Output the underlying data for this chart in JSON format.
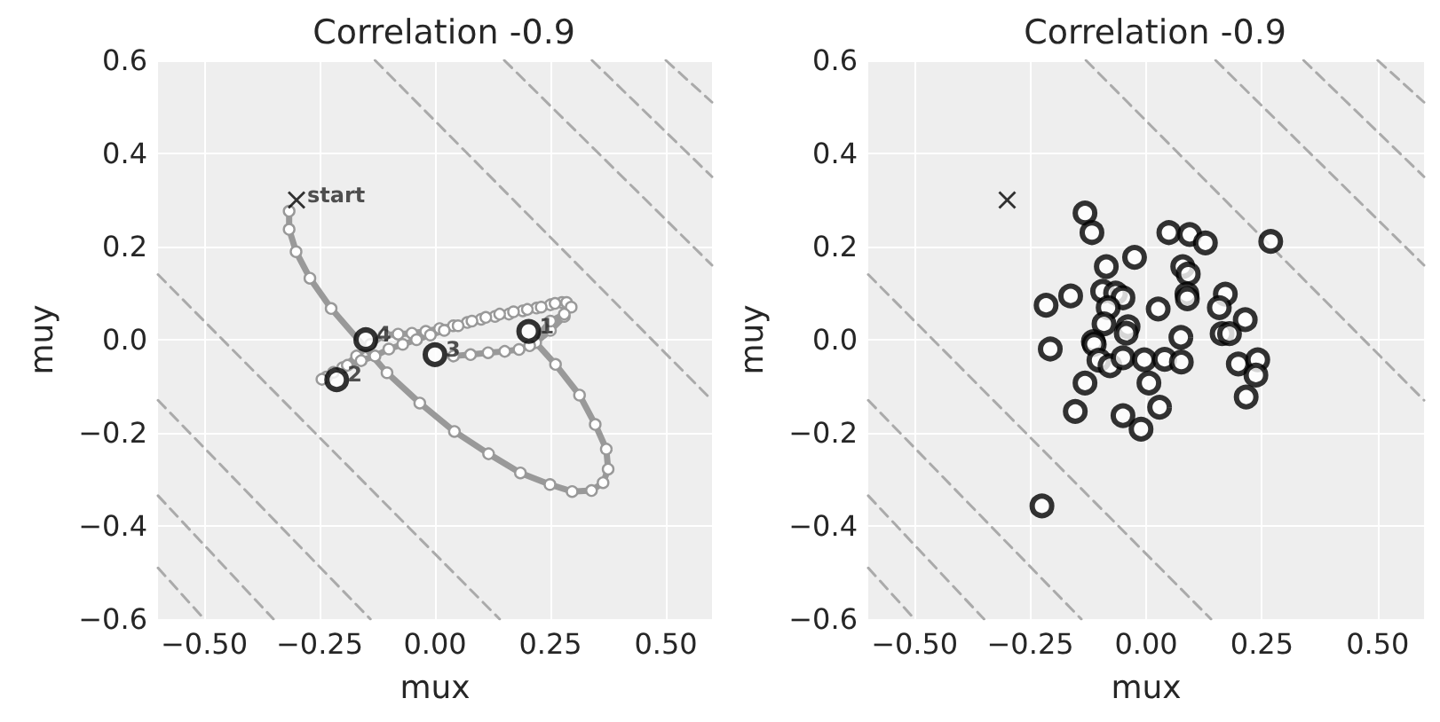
{
  "chart_data": [
    {
      "type": "scatter",
      "title": "Correlation -0.9",
      "xlabel": "mux",
      "ylabel": "muy",
      "xlim": [
        -0.6,
        0.6
      ],
      "ylim": [
        -0.6,
        0.6
      ],
      "xticks": [
        {
          "value": -0.5,
          "label": "−0.50"
        },
        {
          "value": -0.25,
          "label": "−0.25"
        },
        {
          "value": 0,
          "label": "0.00"
        },
        {
          "value": 0.25,
          "label": "0.25"
        },
        {
          "value": 0.5,
          "label": "0.50"
        }
      ],
      "yticks": [
        {
          "value": -0.6,
          "label": "−0.6"
        },
        {
          "value": -0.4,
          "label": "−0.4"
        },
        {
          "value": -0.2,
          "label": "−0.2"
        },
        {
          "value": 0,
          "label": "0.0"
        },
        {
          "value": 0.2,
          "label": "0.2"
        },
        {
          "value": 0.4,
          "label": "0.4"
        },
        {
          "value": 0.6,
          "label": "0.6"
        }
      ],
      "grid": true,
      "annotations": [
        {
          "text": "start",
          "x": -0.3,
          "y": 0.3
        },
        {
          "text": "1",
          "x": 0.203,
          "y": 0.018
        },
        {
          "text": "2",
          "x": -0.213,
          "y": -0.086
        },
        {
          "text": "3",
          "x": 0.0,
          "y": -0.032
        },
        {
          "text": "4",
          "x": -0.15,
          "y": 0.0
        }
      ],
      "series": [
        {
          "type": "line",
          "color": "#aaaaaa",
          "line_style": "dashed",
          "marker": "none",
          "x": [
            -0.6,
            0.14
          ],
          "values": [
            0.14,
            -0.6
          ]
        },
        {
          "type": "line",
          "color": "#aaaaaa",
          "line_style": "dashed",
          "marker": "none",
          "x": [
            -0.6,
            -0.14
          ],
          "values": [
            -0.13,
            -0.6
          ]
        },
        {
          "type": "line",
          "color": "#aaaaaa",
          "line_style": "dashed",
          "marker": "none",
          "x": [
            -0.6,
            -0.35
          ],
          "values": [
            -0.335,
            -0.6
          ]
        },
        {
          "type": "line",
          "color": "#aaaaaa",
          "line_style": "dashed",
          "marker": "none",
          "x": [
            -0.6,
            -0.5
          ],
          "values": [
            -0.49,
            -0.6
          ]
        },
        {
          "type": "line",
          "color": "#aaaaaa",
          "line_style": "dashed",
          "marker": "none",
          "x": [
            -0.13,
            0.6
          ],
          "values": [
            0.6,
            -0.13
          ]
        },
        {
          "type": "line",
          "color": "#aaaaaa",
          "line_style": "dashed",
          "marker": "none",
          "x": [
            0.15,
            0.6
          ],
          "values": [
            0.6,
            0.16
          ]
        },
        {
          "type": "line",
          "color": "#aaaaaa",
          "line_style": "dashed",
          "marker": "none",
          "x": [
            0.34,
            0.6
          ],
          "values": [
            0.6,
            0.35
          ]
        },
        {
          "type": "line",
          "color": "#aaaaaa",
          "line_style": "dashed",
          "marker": "none",
          "x": [
            0.5,
            0.6
          ],
          "values": [
            0.6,
            0.51
          ]
        },
        {
          "type": "line",
          "color": "#999999",
          "line_style": "solid",
          "marker": "circle",
          "x": [
            -0.316,
            -0.316,
            -0.301,
            -0.271,
            -0.225,
            -0.104,
            -0.033,
            0.042,
            0.116,
            0.185,
            0.249,
            0.297,
            0.339,
            0.364,
            0.375,
            0.371,
            0.347,
            0.313,
            0.261,
            0.218,
            0.25,
            0.28,
            0.29,
            0.275,
            0.25,
            0.22,
            0.19,
            0.16,
            0.13,
            0.1,
            0.07,
            0.04,
            0.01,
            -0.02,
            -0.05,
            -0.08,
            -0.11,
            -0.14,
            -0.17,
            -0.2,
            -0.235,
            -0.245,
            -0.22,
            -0.19,
            -0.16,
            -0.13,
            -0.1,
            -0.07,
            -0.04,
            -0.01,
            0.02,
            0.05,
            0.08,
            0.11,
            0.14,
            0.17,
            0.2,
            0.23,
            0.26,
            0.285,
            0.295,
            0.28,
            0.25,
            0.205,
            0.182,
            0.151,
            0.115,
            0.077,
            0.04
          ],
          "values": [
            0.276,
            0.237,
            0.189,
            0.132,
            0.067,
            -0.071,
            -0.136,
            -0.197,
            -0.245,
            -0.286,
            -0.311,
            -0.326,
            -0.324,
            -0.307,
            -0.278,
            -0.235,
            -0.182,
            -0.119,
            -0.053,
            -0.006,
            0.02,
            0.05,
            0.07,
            0.08,
            0.075,
            0.068,
            0.062,
            0.055,
            0.05,
            0.044,
            0.037,
            0.03,
            0.024,
            0.018,
            0.014,
            0.012,
            0.01,
            -0.01,
            -0.035,
            -0.06,
            -0.08,
            -0.085,
            -0.07,
            -0.055,
            -0.045,
            -0.035,
            -0.02,
            -0.01,
            0,
            0.01,
            0.02,
            0.03,
            0.04,
            0.048,
            0.055,
            0.06,
            0.065,
            0.07,
            0.078,
            0.08,
            0.07,
            0.055,
            0.04,
            -0.013,
            -0.021,
            -0.025,
            -0.028,
            -0.032,
            -0.035
          ]
        },
        {
          "type": "scatter",
          "color": "#000000",
          "marker": "cross",
          "x": [
            -0.3
          ],
          "values": [
            0.3
          ]
        },
        {
          "color": "#000000",
          "marker": "circle",
          "x": [
            0.203,
            -0.213,
            0.0,
            -0.15
          ],
          "values": [
            0.018,
            -0.086,
            -0.032,
            0.0
          ]
        }
      ]
    },
    {
      "type": "scatter",
      "title": "Correlation -0.9",
      "xlabel": "mux",
      "ylabel": "muy",
      "xlim": [
        -0.6,
        0.6
      ],
      "ylim": [
        -0.6,
        0.6
      ],
      "xticks": [
        {
          "value": -0.5,
          "label": "−0.50"
        },
        {
          "value": -0.25,
          "label": "−0.25"
        },
        {
          "value": 0,
          "label": "0.00"
        },
        {
          "value": 0.25,
          "label": "0.25"
        },
        {
          "value": 0.5,
          "label": "0.50"
        }
      ],
      "yticks": [
        {
          "value": -0.6,
          "label": "−0.6"
        },
        {
          "value": -0.4,
          "label": "−0.4"
        },
        {
          "value": -0.2,
          "label": "−0.2"
        },
        {
          "value": 0,
          "label": "0.0"
        },
        {
          "value": 0.2,
          "label": "0.2"
        },
        {
          "value": 0.4,
          "label": "0.4"
        },
        {
          "value": 0.6,
          "label": "0.6"
        }
      ],
      "grid": true,
      "series": [
        {
          "type": "line",
          "color": "#aaaaaa",
          "line_style": "dashed",
          "marker": "none",
          "x": [
            -0.6,
            0.14
          ],
          "values": [
            0.14,
            -0.6
          ]
        },
        {
          "type": "line",
          "color": "#aaaaaa",
          "line_style": "dashed",
          "marker": "none",
          "x": [
            -0.6,
            -0.14
          ],
          "values": [
            -0.13,
            -0.6
          ]
        },
        {
          "type": "line",
          "color": "#aaaaaa",
          "line_style": "dashed",
          "marker": "none",
          "x": [
            -0.6,
            -0.35
          ],
          "values": [
            -0.335,
            -0.6
          ]
        },
        {
          "type": "line",
          "color": "#aaaaaa",
          "line_style": "dashed",
          "marker": "none",
          "x": [
            -0.6,
            -0.5
          ],
          "values": [
            -0.49,
            -0.6
          ]
        },
        {
          "type": "line",
          "color": "#aaaaaa",
          "line_style": "dashed",
          "marker": "none",
          "x": [
            -0.13,
            0.6
          ],
          "values": [
            0.6,
            -0.13
          ]
        },
        {
          "type": "line",
          "color": "#aaaaaa",
          "line_style": "dashed",
          "marker": "none",
          "x": [
            0.15,
            0.6
          ],
          "values": [
            0.6,
            0.16
          ]
        },
        {
          "type": "line",
          "color": "#aaaaaa",
          "line_style": "dashed",
          "marker": "none",
          "x": [
            0.34,
            0.6
          ],
          "values": [
            0.6,
            0.35
          ]
        },
        {
          "type": "line",
          "color": "#aaaaaa",
          "line_style": "dashed",
          "marker": "none",
          "x": [
            0.5,
            0.6
          ],
          "values": [
            0.6,
            0.51
          ]
        },
        {
          "type": "scatter",
          "color": "#000000",
          "marker": "cross",
          "x": [
            -0.3
          ],
          "values": [
            0.3
          ]
        },
        {
          "type": "scatter",
          "color": "#000000",
          "marker": "circle",
          "x": [
            -0.132,
            -0.117,
            0.049,
            0.094,
            0.128,
            0.269,
            -0.025,
            -0.086,
            0.079,
            0.091,
            -0.163,
            -0.094,
            -0.066,
            -0.05,
            0.088,
            0.089,
            0.171,
            -0.216,
            -0.082,
            0.026,
            0.158,
            0.214,
            -0.091,
            -0.039,
            -0.043,
            0.075,
            0.164,
            0.18,
            -0.114,
            -0.112,
            -0.207,
            -0.102,
            -0.078,
            -0.05,
            -0.004,
            0.04,
            0.076,
            0.199,
            0.241,
            0.237,
            -0.132,
            0.006,
            0.216,
            -0.153,
            -0.05,
            0.029,
            -0.011,
            -0.225
          ],
          "values": [
            0.272,
            0.23,
            0.23,
            0.226,
            0.208,
            0.211,
            0.177,
            0.157,
            0.157,
            0.141,
            0.094,
            0.104,
            0.1,
            0.09,
            0.098,
            0.088,
            0.098,
            0.074,
            0.069,
            0.066,
            0.069,
            0.043,
            0.034,
            0.028,
            0.014,
            0.005,
            0.013,
            0.013,
            -0.004,
            -0.01,
            -0.02,
            -0.044,
            -0.056,
            -0.039,
            -0.043,
            -0.042,
            -0.048,
            -0.052,
            -0.043,
            -0.076,
            -0.093,
            -0.093,
            -0.123,
            -0.154,
            -0.163,
            -0.145,
            -0.192,
            -0.357
          ]
        }
      ]
    }
  ]
}
